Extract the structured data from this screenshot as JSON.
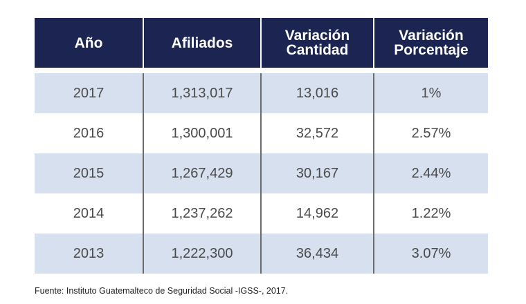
{
  "table": {
    "headers": [
      {
        "line1": "Año",
        "line2": ""
      },
      {
        "line1": "Afiliados",
        "line2": ""
      },
      {
        "line1": "Variación",
        "line2": "Cantidad"
      },
      {
        "line1": "Variación",
        "line2": "Porcentaje"
      }
    ],
    "rows": [
      {
        "year": "2017",
        "afiliados": "1,313,017",
        "cantidad": "13,016",
        "porcentaje": "1%"
      },
      {
        "year": "2016",
        "afiliados": "1,300,001",
        "cantidad": "32,572",
        "porcentaje": "2.57%"
      },
      {
        "year": "2015",
        "afiliados": "1,267,429",
        "cantidad": "30,167",
        "porcentaje": "2.44%"
      },
      {
        "year": "2014",
        "afiliados": "1,237,262",
        "cantidad": "14,962",
        "porcentaje": "1.22%"
      },
      {
        "year": "2013",
        "afiliados": "1,222,300",
        "cantidad": "36,434",
        "porcentaje": "3.07%"
      }
    ]
  },
  "footnote": "Fuente: Instituto Guatemalteco de Seguridad Social -IGSS-, 2017.",
  "colors": {
    "header_bg": "#1c2452",
    "row_shade": "#d6e0ee",
    "divider": "#6b6b6b"
  }
}
